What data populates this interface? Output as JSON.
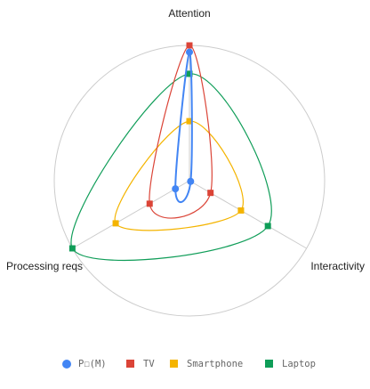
{
  "chart_data": {
    "type": "radar",
    "axes": [
      "Attention",
      "Interactivity",
      "Processing reqs"
    ],
    "scale": {
      "min": 0,
      "max": 10
    },
    "grid": true,
    "legend_position": "bottom",
    "series": [
      {
        "name": "P☐(M)",
        "marker": "circle",
        "color": "#4285f4",
        "values": [
          9.5,
          0.1,
          1.2
        ]
      },
      {
        "name": "TV",
        "marker": "square",
        "color": "#db4437",
        "values": [
          10.0,
          1.8,
          3.4
        ]
      },
      {
        "name": "Smartphone",
        "marker": "square",
        "color": "#f4b400",
        "values": [
          4.4,
          4.4,
          6.3
        ]
      },
      {
        "name": "Laptop",
        "marker": "square",
        "color": "#0f9d58",
        "values": [
          7.9,
          6.7,
          10.0
        ]
      }
    ]
  }
}
